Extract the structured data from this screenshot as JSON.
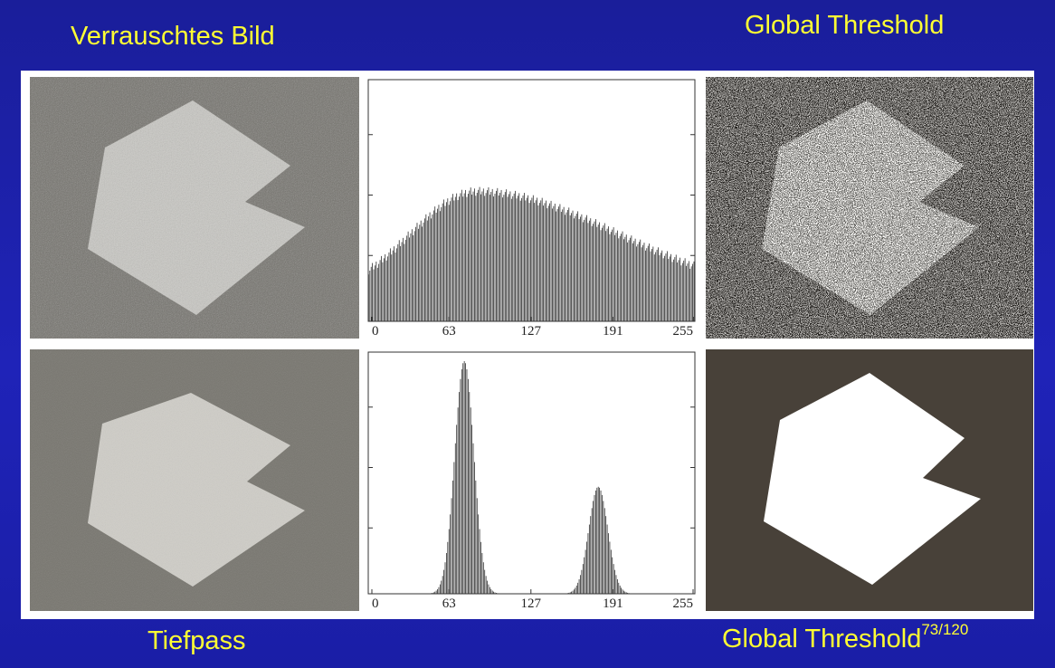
{
  "titles": {
    "noisy": "Verrauschtes Bild",
    "global_threshold_top": "Global Threshold",
    "lowpass": "Tiefpass",
    "global_threshold_bottom": "Global Threshold",
    "page_number": "73/120"
  },
  "colors": {
    "background": "#1f23b8",
    "title_text": "#ffff33",
    "noisy_background": "#6e6c66",
    "noisy_shape": "#c9c8c3",
    "lowpass_background": "#76746d",
    "lowpass_shape": "#cfcdc7",
    "threshold_background": "#484139",
    "threshold_shape": "#ffffff",
    "histogram_bars": "#2a2a2a"
  },
  "chart_data": [
    {
      "type": "bar",
      "x_ticks": [
        "0",
        "63",
        "127",
        "191",
        "255"
      ],
      "xlim": [
        0,
        255
      ],
      "distribution": "noisy",
      "peak_bin": 85,
      "grid": false
    },
    {
      "type": "bar",
      "x_ticks": [
        "0",
        "63",
        "127",
        "191",
        "255"
      ],
      "xlim": [
        0,
        255
      ],
      "distribution": "lowpass",
      "peaks": [
        {
          "bin": 75,
          "relative_height": 1.0
        },
        {
          "bin": 180,
          "relative_height": 0.46
        }
      ],
      "grid": false
    }
  ]
}
